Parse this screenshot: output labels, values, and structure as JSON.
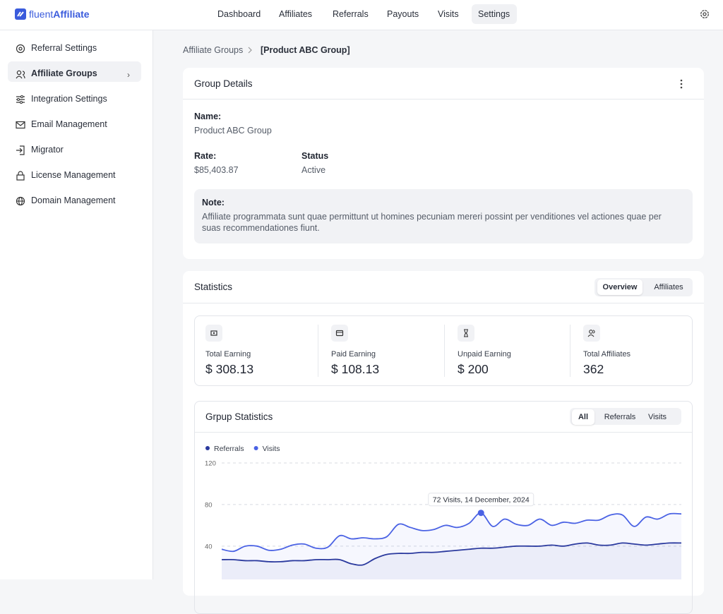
{
  "header": {
    "brand": "fluent",
    "product": "Affiliate",
    "nav": [
      {
        "label": "Dashboard",
        "active": false
      },
      {
        "label": "Affiliates",
        "active": false
      },
      {
        "label": "Referrals",
        "active": false
      },
      {
        "label": "Payouts",
        "active": false
      },
      {
        "label": "Visits",
        "active": false
      },
      {
        "label": "Settings",
        "active": true
      }
    ]
  },
  "sidebar": {
    "items": [
      {
        "label": "Referral Settings",
        "active": false
      },
      {
        "label": "Affiliate Groups",
        "active": true
      },
      {
        "label": "Integration Settings",
        "active": false
      },
      {
        "label": "Email Management",
        "active": false
      },
      {
        "label": "Migrator",
        "active": false
      },
      {
        "label": "License Management",
        "active": false
      },
      {
        "label": "Domain Management",
        "active": false
      }
    ]
  },
  "breadcrumb": [
    "Affiliate Groups",
    "[Product ABC Group]"
  ],
  "group_details": {
    "title": "Group Details",
    "name_label": "Name:",
    "name_value": "Product ABC Group",
    "rate_label": "Rate:",
    "rate_value": "$85,403.87",
    "status_label": "Status",
    "status_value": "Active",
    "note_label": "Note:",
    "note_text": "Affiliate programmata sunt quae permittunt ut homines pecuniam mereri possint per venditiones vel actiones quae per suas recommendationes fiunt."
  },
  "statistics": {
    "title": "Statistics",
    "tabs": [
      {
        "label": "Overview",
        "active": true
      },
      {
        "label": "Affiliates",
        "active": false
      }
    ],
    "cards": [
      {
        "label": "Total Earning",
        "value": "$ 308.13"
      },
      {
        "label": "Paid Earning",
        "value": "$ 108.13"
      },
      {
        "label": "Unpaid Earning",
        "value": "$ 200"
      },
      {
        "label": "Total Affiliates",
        "value": "362"
      }
    ]
  },
  "chart_data": {
    "type": "line",
    "title": "Grpup Statistics",
    "tabs": [
      {
        "label": "All",
        "active": true
      },
      {
        "label": "Referrals",
        "active": false
      },
      {
        "label": "Visits",
        "active": false
      }
    ],
    "series": [
      {
        "name": "Referrals",
        "color": "#2b3a9e",
        "values": [
          27,
          27,
          26,
          26,
          25,
          25,
          26,
          26,
          27,
          27,
          27,
          23,
          22,
          28,
          32,
          33,
          33,
          34,
          34,
          35,
          36,
          37,
          38,
          38,
          39,
          40,
          40,
          40,
          41,
          40,
          42,
          43,
          41,
          41,
          43,
          42,
          41,
          42,
          43,
          43
        ]
      },
      {
        "name": "Visits",
        "color": "#4a62e4",
        "values": [
          37,
          35,
          40,
          40,
          36,
          37,
          41,
          42,
          38,
          39,
          50,
          47,
          48,
          47,
          49,
          61,
          58,
          55,
          56,
          60,
          58,
          62,
          72,
          59,
          66,
          61,
          60,
          66,
          60,
          63,
          62,
          65,
          65,
          70,
          70,
          59,
          68,
          66,
          71,
          71
        ]
      }
    ],
    "ylim": [
      10,
      120
    ],
    "yticks": [
      40,
      80,
      120
    ],
    "grid": true,
    "tooltip": "72 Visits, 14 December, 2024"
  }
}
